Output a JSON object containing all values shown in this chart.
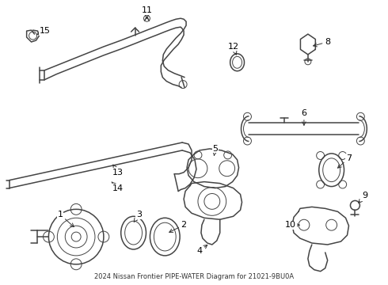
{
  "title": "2024 Nissan Frontier PIPE-WATER Diagram for 21021-9BU0A",
  "background_color": "#ffffff",
  "line_color": "#444444",
  "label_color": "#000000",
  "fig_width": 4.9,
  "fig_height": 3.6,
  "dpi": 100
}
